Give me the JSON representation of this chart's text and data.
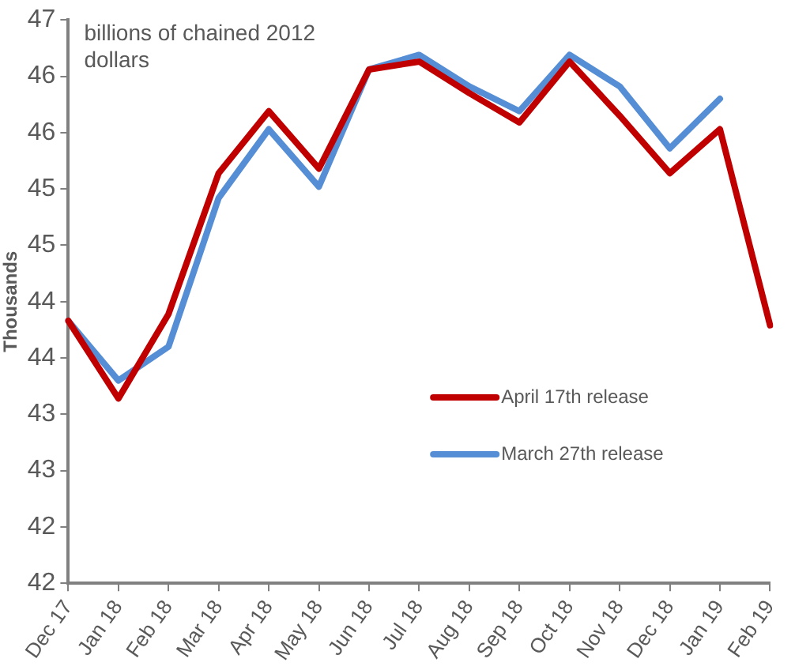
{
  "chart_data": {
    "type": "line",
    "ylabel": "Thousands",
    "annotations": [
      "billions of chained 2012 dollars"
    ],
    "categories": [
      "Dec 17",
      "Jan 18",
      "Feb 18",
      "Mar 18",
      "Apr 18",
      "May 18",
      "Jun 18",
      "Jul 18",
      "Aug 18",
      "Sep 18",
      "Oct 18",
      "Nov 18",
      "Dec 18",
      "Jan 19",
      "Feb 19"
    ],
    "series": [
      {
        "name": "April 17th release",
        "color": "#c00000",
        "values": [
          44.33,
          43.64,
          44.39,
          45.64,
          46.19,
          45.68,
          46.56,
          46.63,
          46.35,
          46.09,
          46.63,
          46.15,
          45.64,
          46.03,
          44.29
        ]
      },
      {
        "name": "March 27th release",
        "color": "#558ed5",
        "values": [
          44.33,
          43.8,
          44.1,
          45.42,
          46.03,
          45.52,
          46.56,
          46.69,
          46.41,
          46.19,
          46.69,
          46.41,
          45.86,
          46.3,
          null
        ]
      }
    ],
    "ylim": [
      42,
      47
    ],
    "yticks": [
      42,
      {
        "value": 42.5,
        "label": "42"
      },
      43,
      {
        "value": 43.5,
        "label": "43"
      },
      44,
      {
        "value": 44.5,
        "label": "44"
      },
      45,
      {
        "value": 45.5,
        "label": "45"
      },
      46,
      {
        "value": 46.5,
        "label": "46"
      },
      47
    ],
    "grid": false,
    "legend": "right",
    "marker": "none",
    "line_style": "solid"
  }
}
